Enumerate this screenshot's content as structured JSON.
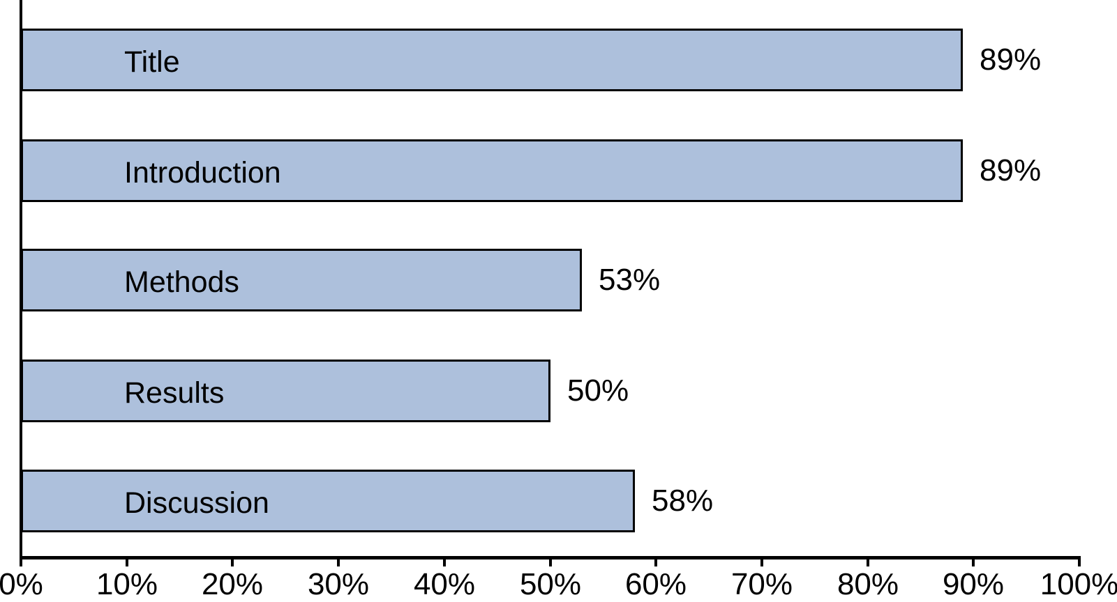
{
  "chart_data": {
    "type": "bar",
    "orientation": "horizontal",
    "title": "",
    "xlabel": "",
    "ylabel": "",
    "categories": [
      "Title",
      "Introduction",
      "Methods",
      "Results",
      "Discussion"
    ],
    "values": [
      89,
      89,
      53,
      50,
      58
    ],
    "value_labels": [
      "89%",
      "89%",
      "53%",
      "50%",
      "58%"
    ],
    "x_ticks": [
      {
        "value": 0,
        "label": "0%"
      },
      {
        "value": 10,
        "label": "10%"
      },
      {
        "value": 20,
        "label": "20%"
      },
      {
        "value": 30,
        "label": "30%"
      },
      {
        "value": 40,
        "label": "40%"
      },
      {
        "value": 50,
        "label": "50%"
      },
      {
        "value": 60,
        "label": "60%"
      },
      {
        "value": 70,
        "label": "70%"
      },
      {
        "value": 80,
        "label": "80%"
      },
      {
        "value": 90,
        "label": "90%"
      },
      {
        "value": 100,
        "label": "100%"
      }
    ],
    "xlim": [
      0,
      100
    ],
    "grid": false,
    "legend": null,
    "colors": {
      "bar_fill": "#adc0dc",
      "bar_border": "#000000",
      "axis": "#000000",
      "text": "#000000",
      "background": "#ffffff"
    }
  }
}
